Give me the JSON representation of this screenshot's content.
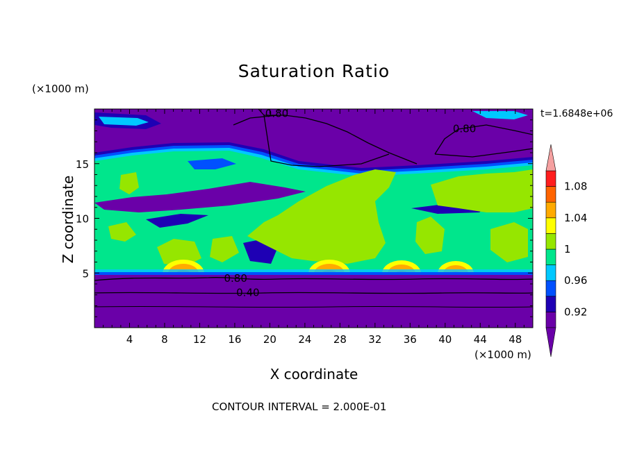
{
  "chart_data": {
    "type": "heatmap",
    "title": "Saturation Ratio",
    "xlabel": "X coordinate",
    "ylabel": "Z coordinate",
    "x_unit": "(×1000 m)",
    "y_unit": "(×1000 m)",
    "time_label": "t=1.6848e+06",
    "footer": "CONTOUR INTERVAL = 2.000E-01",
    "xlim": [
      0,
      50
    ],
    "ylim": [
      0,
      20
    ],
    "x_ticks": [
      4,
      8,
      12,
      16,
      20,
      24,
      28,
      32,
      36,
      40,
      44,
      48
    ],
    "y_ticks": [
      5,
      10,
      15
    ],
    "colorbar": {
      "levels": [
        0.9,
        0.92,
        0.94,
        0.96,
        0.98,
        1.0,
        1.02,
        1.04,
        1.06,
        1.08,
        1.1
      ],
      "labels": [
        "0.92",
        "0.96",
        "1",
        "1.04",
        "1.08"
      ],
      "label_values": [
        0.92,
        0.96,
        1.0,
        1.04,
        1.08
      ],
      "colors": [
        "#6a00a8",
        "#1e00b4",
        "#0050ff",
        "#00c8ff",
        "#00e68c",
        "#96e600",
        "#ffff00",
        "#ffaa00",
        "#ff6400",
        "#ff1e1e",
        "#f5a0a0"
      ],
      "under_color": "#6a00a8",
      "over_color": "#f5a0a0"
    },
    "contour_labels": [
      {
        "text": "0.80",
        "x": 20.8,
        "y": 19.6
      },
      {
        "text": "0.80",
        "x": 42.2,
        "y": 18.2
      },
      {
        "text": "0.80",
        "x": 16.1,
        "y": 4.5
      },
      {
        "text": "0.40",
        "x": 17.5,
        "y": 3.2
      }
    ]
  }
}
